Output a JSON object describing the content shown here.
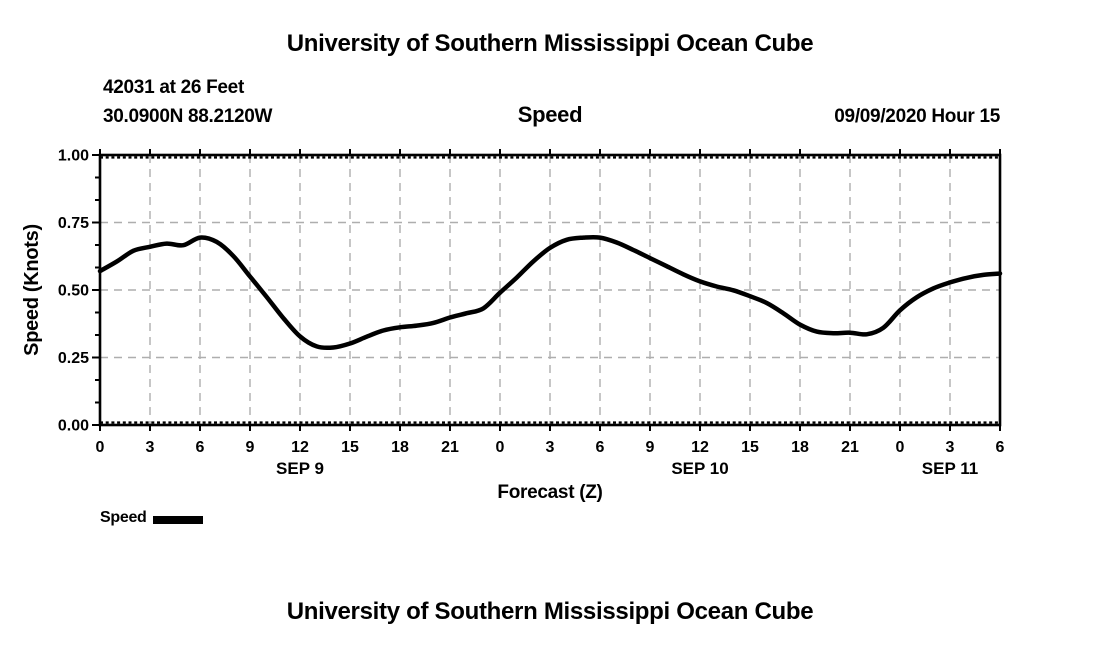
{
  "page": {
    "top_title": "University of Southern Mississippi Ocean Cube",
    "bottom_title": "University of Southern Mississippi Ocean Cube"
  },
  "header": {
    "station": "42031 at 26 Feet",
    "coordinates": "30.0900N 88.2120W",
    "plot_title": "Speed",
    "datetime": "09/09/2020 Hour 15"
  },
  "axes": {
    "ylabel": "Speed (Knots)",
    "xlabel": "Forecast (Z)"
  },
  "legend": {
    "label": "Speed"
  },
  "colors": {
    "line": "#000000",
    "grid": "#aeaeae",
    "frame": "#000000",
    "background": "#ffffff",
    "text": "#000000"
  },
  "chart_data": {
    "type": "line",
    "title": "Speed",
    "xlabel": "Forecast (Z)",
    "ylabel": "Speed (Knots)",
    "xlim": [
      0,
      54
    ],
    "ylim": [
      0.0,
      1.0
    ],
    "grid": "dashed",
    "y_ticks": [
      {
        "value": 0.0,
        "label": "0.00"
      },
      {
        "value": 0.25,
        "label": "0.25"
      },
      {
        "value": 0.5,
        "label": "0.50"
      },
      {
        "value": 0.75,
        "label": "0.75"
      },
      {
        "value": 1.0,
        "label": "1.00"
      }
    ],
    "y_minor_per_interval": 2,
    "x_major_step_hours": 3,
    "x_tick_labels": [
      "0",
      "3",
      "6",
      "9",
      "12",
      "15",
      "18",
      "21",
      "0",
      "3",
      "6",
      "9",
      "12",
      "15",
      "18",
      "21",
      "0",
      "3",
      "6"
    ],
    "day_labels": [
      {
        "label": "SEP 9",
        "hour": 12
      },
      {
        "label": "SEP 10",
        "hour": 36
      },
      {
        "label": "SEP 11",
        "hour": 51
      }
    ],
    "series": [
      {
        "name": "Speed",
        "color": "#000000",
        "x_hours": [
          0,
          1,
          2,
          3,
          4,
          5,
          6,
          7,
          8,
          9,
          10,
          11,
          12,
          13,
          14,
          15,
          16,
          17,
          18,
          19,
          20,
          21,
          22,
          23,
          24,
          25,
          26,
          27,
          28,
          29,
          30,
          31,
          32,
          33,
          34,
          35,
          36,
          37,
          38,
          39,
          40,
          41,
          42,
          43,
          44,
          45,
          46,
          47,
          48,
          49,
          50,
          51,
          52,
          53,
          54
        ],
        "values": [
          0.57,
          0.605,
          0.645,
          0.66,
          0.672,
          0.666,
          0.694,
          0.678,
          0.626,
          0.55,
          0.474,
          0.396,
          0.328,
          0.291,
          0.287,
          0.302,
          0.327,
          0.35,
          0.362,
          0.368,
          0.378,
          0.398,
          0.414,
          0.432,
          0.49,
          0.546,
          0.606,
          0.656,
          0.686,
          0.694,
          0.694,
          0.676,
          0.648,
          0.618,
          0.588,
          0.558,
          0.532,
          0.513,
          0.499,
          0.477,
          0.452,
          0.414,
          0.372,
          0.346,
          0.34,
          0.342,
          0.336,
          0.36,
          0.425,
          0.473,
          0.506,
          0.528,
          0.545,
          0.556,
          0.561
        ]
      }
    ]
  }
}
